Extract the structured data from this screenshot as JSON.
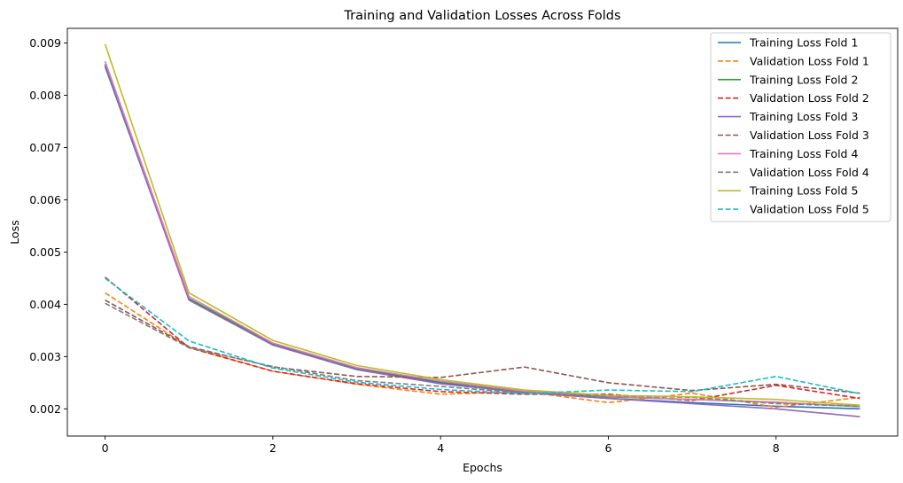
{
  "chart_data": {
    "type": "line",
    "title": "Training and Validation Losses Across Folds",
    "xlabel": "Epochs",
    "ylabel": "Loss",
    "xlim": [
      -0.45,
      9.45
    ],
    "ylim": [
      0.00148,
      0.00928
    ],
    "xticks": [
      0,
      2,
      4,
      6,
      8
    ],
    "xtick_labels": [
      "0",
      "2",
      "4",
      "6",
      "8"
    ],
    "yticks": [
      0.002,
      0.003,
      0.004,
      0.005,
      0.006,
      0.007,
      0.008,
      0.009
    ],
    "ytick_labels": [
      "0.002",
      "0.003",
      "0.004",
      "0.005",
      "0.006",
      "0.007",
      "0.008",
      "0.009"
    ],
    "grid": false,
    "legend_position": "top-right",
    "x": [
      0,
      1,
      2,
      3,
      4,
      5,
      6,
      7,
      8,
      9
    ],
    "series": [
      {
        "name": "Training Loss Fold 1",
        "color": "#1f77b4",
        "style": "solid",
        "values": [
          0.00855,
          0.0041,
          0.00323,
          0.00276,
          0.0025,
          0.00232,
          0.0022,
          0.00212,
          0.00205,
          0.002
        ]
      },
      {
        "name": "Validation Loss Fold 1",
        "color": "#ff7f0e",
        "style": "dashed",
        "values": [
          0.00422,
          0.00318,
          0.00272,
          0.00247,
          0.00228,
          0.00233,
          0.00212,
          0.0023,
          0.00203,
          0.00222
        ]
      },
      {
        "name": "Training Loss Fold 2",
        "color": "#2ca02c",
        "style": "solid",
        "values": [
          0.00858,
          0.00411,
          0.00325,
          0.00278,
          0.00252,
          0.00233,
          0.00223,
          0.00218,
          0.00212,
          0.00205
        ]
      },
      {
        "name": "Validation Loss Fold 2",
        "color": "#d62728",
        "style": "dashed",
        "values": [
          0.00452,
          0.00317,
          0.00272,
          0.00248,
          0.00233,
          0.00228,
          0.00228,
          0.00216,
          0.00245,
          0.0022
        ]
      },
      {
        "name": "Training Loss Fold 3",
        "color": "#9467bd",
        "style": "solid",
        "values": [
          0.0086,
          0.00408,
          0.00322,
          0.00275,
          0.00248,
          0.00231,
          0.0022,
          0.0021,
          0.002,
          0.00185
        ]
      },
      {
        "name": "Validation Loss Fold 3",
        "color": "#8c564b",
        "style": "dashed",
        "values": [
          0.00408,
          0.00319,
          0.0028,
          0.00262,
          0.0026,
          0.0028,
          0.0025,
          0.00235,
          0.00247,
          0.0023
        ]
      },
      {
        "name": "Training Loss Fold 4",
        "color": "#e377c2",
        "style": "solid",
        "values": [
          0.00865,
          0.00415,
          0.00326,
          0.00279,
          0.00253,
          0.00234,
          0.00224,
          0.00218,
          0.00213,
          0.00204
        ]
      },
      {
        "name": "Validation Loss Fold 4",
        "color": "#7f7f7f",
        "style": "dashed",
        "values": [
          0.00402,
          0.00317,
          0.00281,
          0.00254,
          0.00243,
          0.0023,
          0.00225,
          0.00222,
          0.0021,
          0.00205
        ]
      },
      {
        "name": "Training Loss Fold 5",
        "color": "#bcbd22",
        "style": "solid",
        "values": [
          0.00898,
          0.00422,
          0.00331,
          0.00283,
          0.00256,
          0.00236,
          0.00226,
          0.00223,
          0.00218,
          0.00207
        ]
      },
      {
        "name": "Validation Loss Fold 5",
        "color": "#17becf",
        "style": "dashed",
        "values": [
          0.0045,
          0.0033,
          0.00278,
          0.00251,
          0.00237,
          0.00229,
          0.00236,
          0.00233,
          0.00262,
          0.00229
        ]
      }
    ]
  }
}
